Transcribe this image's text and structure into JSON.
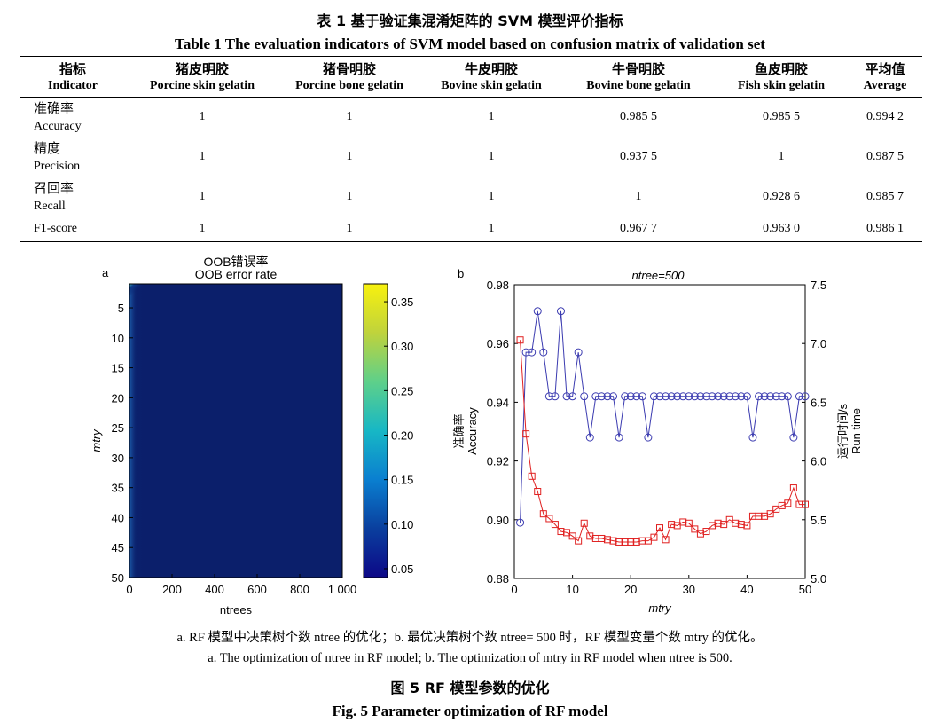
{
  "table": {
    "title_cn": "表 1 基于验证集混淆矩阵的 SVM 模型评价指标",
    "title_en": "Table 1 The evaluation indicators of SVM model based on confusion matrix of validation set",
    "columns": [
      {
        "cn": "指标",
        "en": "Indicator"
      },
      {
        "cn": "猪皮明胶",
        "en": "Porcine skin gelatin"
      },
      {
        "cn": "猪骨明胶",
        "en": "Porcine bone gelatin"
      },
      {
        "cn": "牛皮明胶",
        "en": "Bovine skin gelatin"
      },
      {
        "cn": "牛骨明胶",
        "en": "Bovine bone gelatin"
      },
      {
        "cn": "鱼皮明胶",
        "en": "Fish skin gelatin"
      },
      {
        "cn": "平均值",
        "en": "Average"
      }
    ],
    "rows": [
      {
        "cn": "准确率",
        "en": "Accuracy",
        "values": [
          "1",
          "1",
          "1",
          "0.985 5",
          "0.985 5",
          "0.994 2"
        ]
      },
      {
        "cn": "精度",
        "en": "Precision",
        "values": [
          "1",
          "1",
          "1",
          "0.937 5",
          "1",
          "0.987 5"
        ]
      },
      {
        "cn": "召回率",
        "en": "Recall",
        "values": [
          "1",
          "1",
          "1",
          "1",
          "0.928 6",
          "0.985 7"
        ]
      },
      {
        "cn": "",
        "en": "F1-score",
        "values": [
          "1",
          "1",
          "1",
          "0.967 7",
          "0.963 0",
          "0.986 1"
        ]
      }
    ]
  },
  "figure": {
    "caption_a_cn": "a. RF 模型中决策树个数 ntree 的优化；b. 最优决策树个数 ntree= 500 时，RF 模型变量个数 mtry 的优化。",
    "caption_a_en": "a. The optimization of ntree in RF model; b. The optimization of mtry in RF model when ntree is 500.",
    "title_cn": "图 5 RF 模型参数的优化",
    "title_en": "Fig. 5 Parameter optimization of RF model"
  },
  "chart_data": [
    {
      "type": "heatmap",
      "panel_label": "a",
      "title": "OOB错误率",
      "subtitle": "OOB error rate",
      "xlabel": "ntrees",
      "ylabel": "mtry",
      "xlim": [
        0,
        1000
      ],
      "ylim": [
        1,
        50
      ],
      "x_ticks": [
        "0",
        "200",
        "400",
        "600",
        "800",
        "1 000"
      ],
      "y_ticks": [
        "5",
        "10",
        "15",
        "20",
        "25",
        "30",
        "35",
        "40",
        "45",
        "50"
      ],
      "colorbar_ticks": [
        "0.35",
        "0.30",
        "0.25",
        "0.20",
        "0.15",
        "0.10",
        "0.05"
      ],
      "colorbar_range": [
        0.04,
        0.37
      ],
      "colormap": [
        "#0d0887",
        "#0a3f9e",
        "#0a7fd0",
        "#17b7c5",
        "#5ed08a",
        "#bfd33c",
        "#f8f10e"
      ],
      "background_value": 0.05
    },
    {
      "type": "line",
      "panel_label": "b",
      "title": "ntree=500",
      "xlabel": "mtry",
      "ylabel_left_cn": "准确率",
      "ylabel_left_en": "Accuracy",
      "ylabel_right_cn": "运行时间/s",
      "ylabel_right_en": "Run time",
      "xlim": [
        0,
        50
      ],
      "ylim_left": [
        0.88,
        0.98
      ],
      "ylim_right": [
        5.0,
        7.5
      ],
      "x_ticks": [
        "0",
        "10",
        "20",
        "30",
        "40",
        "50"
      ],
      "y_ticks_left": [
        "0.98",
        "0.96",
        "0.94",
        "0.92",
        "0.90",
        "0.88"
      ],
      "y_ticks_right": [
        "7.5",
        "7.0",
        "6.5",
        "6.0",
        "5.5",
        "5.0"
      ],
      "x": [
        1,
        2,
        3,
        4,
        5,
        6,
        7,
        8,
        9,
        10,
        11,
        12,
        13,
        14,
        15,
        16,
        17,
        18,
        19,
        20,
        21,
        22,
        23,
        24,
        25,
        26,
        27,
        28,
        29,
        30,
        31,
        32,
        33,
        34,
        35,
        36,
        37,
        38,
        39,
        40,
        41,
        42,
        43,
        44,
        45,
        46,
        47,
        48,
        49,
        50
      ],
      "series": [
        {
          "axis": "left",
          "color": "#3b3bb0",
          "marker": "circle",
          "values": [
            0.899,
            0.957,
            0.957,
            0.971,
            0.957,
            0.942,
            0.942,
            0.971,
            0.942,
            0.942,
            0.957,
            0.942,
            0.928,
            0.942,
            0.942,
            0.942,
            0.942,
            0.928,
            0.942,
            0.942,
            0.942,
            0.942,
            0.928,
            0.942,
            0.942,
            0.942,
            0.942,
            0.942,
            0.942,
            0.942,
            0.942,
            0.942,
            0.942,
            0.942,
            0.942,
            0.942,
            0.942,
            0.942,
            0.942,
            0.942,
            0.928,
            0.942,
            0.942,
            0.942,
            0.942,
            0.942,
            0.942,
            0.928,
            0.942,
            0.942
          ]
        },
        {
          "axis": "right",
          "color": "#e02020",
          "marker": "square",
          "values": [
            7.03,
            6.23,
            5.87,
            5.74,
            5.55,
            5.51,
            5.46,
            5.4,
            5.39,
            5.36,
            5.32,
            5.47,
            5.36,
            5.34,
            5.34,
            5.33,
            5.32,
            5.31,
            5.31,
            5.31,
            5.31,
            5.32,
            5.32,
            5.35,
            5.43,
            5.33,
            5.46,
            5.45,
            5.48,
            5.47,
            5.42,
            5.38,
            5.4,
            5.45,
            5.47,
            5.46,
            5.5,
            5.47,
            5.46,
            5.45,
            5.53,
            5.53,
            5.53,
            5.55,
            5.59,
            5.62,
            5.64,
            5.77,
            5.63,
            5.63
          ]
        }
      ]
    }
  ]
}
